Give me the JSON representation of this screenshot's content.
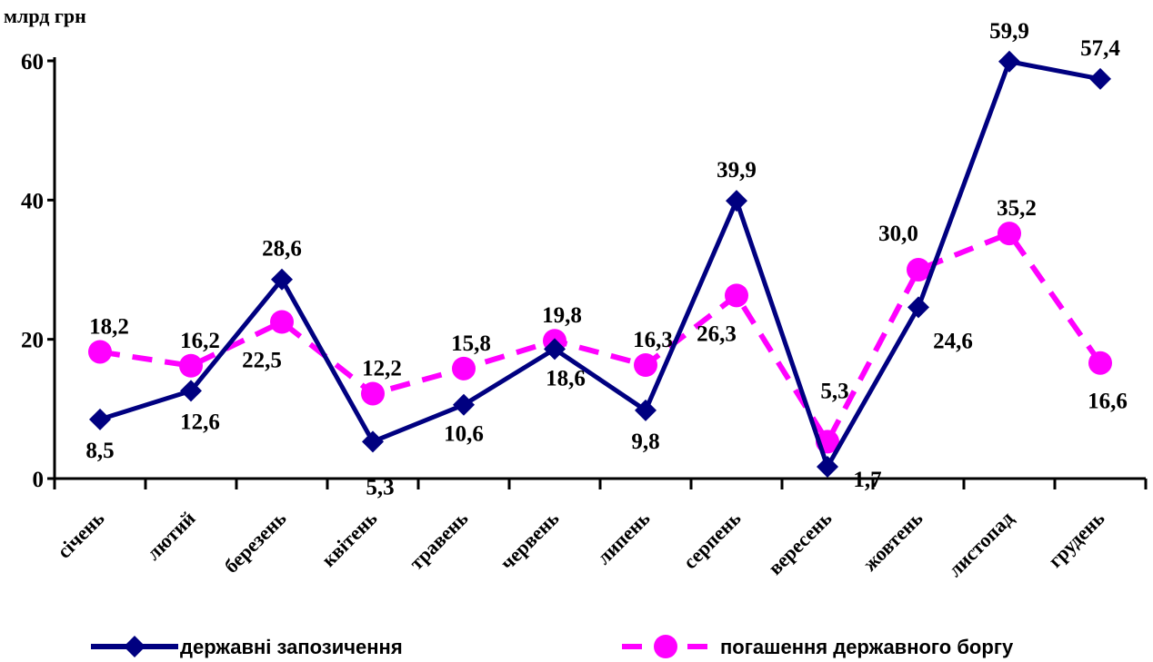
{
  "chart_data": {
    "type": "line",
    "unit_label": "млрд грн",
    "categories": [
      "січень",
      "лютий",
      "березень",
      "квітень",
      "травень",
      "червень",
      "липень",
      "серпень",
      "вересень",
      "жовтень",
      "листопад",
      "грудень"
    ],
    "ylim": [
      0,
      60
    ],
    "yticks": [
      "0",
      "20",
      "40",
      "60"
    ],
    "grid": false,
    "legend_position": "bottom",
    "series": [
      {
        "name": "державні запозичення",
        "values": [
          8.5,
          12.6,
          28.6,
          5.3,
          10.6,
          18.6,
          9.8,
          39.9,
          1.7,
          24.6,
          59.9,
          57.4
        ],
        "labels": [
          "8,5",
          "12,6",
          "28,6",
          "5,3",
          "10,6",
          "18,6",
          "9,8",
          "39,9",
          "1,7",
          "24,6",
          "59,9",
          "57,4"
        ],
        "color": "#000080",
        "marker": "diamond",
        "line_style": "solid"
      },
      {
        "name": "погашення державного боргу",
        "values": [
          18.2,
          16.2,
          22.5,
          12.2,
          15.8,
          19.8,
          16.3,
          26.3,
          5.3,
          30.0,
          35.2,
          16.6
        ],
        "labels": [
          "18,2",
          "16,2",
          "22,5",
          "12,2",
          "15,8",
          "19,8",
          "16,3",
          "26,3",
          "5,3",
          "30,0",
          "35,2",
          "16,6"
        ],
        "color": "#ff00ff",
        "marker": "circle",
        "line_style": "dashed"
      }
    ]
  }
}
